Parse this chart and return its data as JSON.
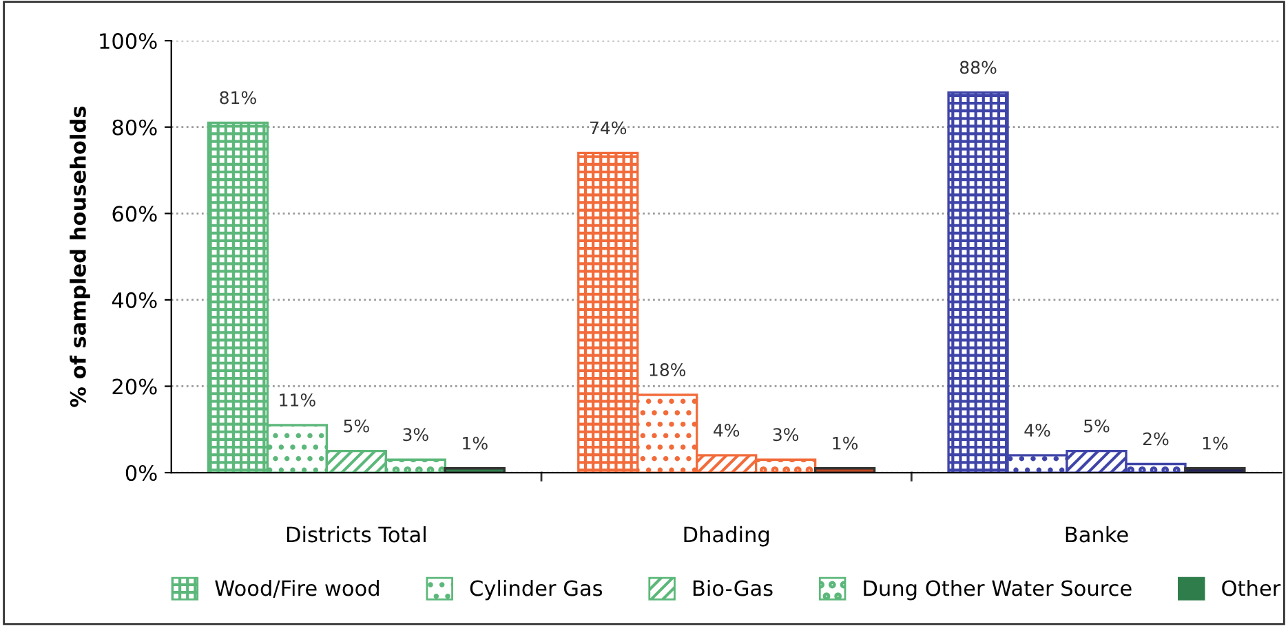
{
  "chart_data": {
    "type": "bar",
    "categories": [
      "Districts Total",
      "Dhading",
      "Banke"
    ],
    "ylabel": "% of sampled households",
    "series": [
      {
        "name": "Wood/Fire wood",
        "colors": [
          "#5cb87a",
          "#f26b3a",
          "#3f45a8"
        ],
        "values": [
          81,
          74,
          88
        ]
      },
      {
        "name": "Cylinder Gas",
        "colors": [
          "#5cb87a",
          "#f26b3a",
          "#3f45a8"
        ],
        "values": [
          11,
          18,
          4
        ]
      },
      {
        "name": "Bio-Gas",
        "colors": [
          "#5cb87a",
          "#f26b3a",
          "#3f45a8"
        ],
        "values": [
          5,
          4,
          5
        ]
      },
      {
        "name": "Dung Other Water Source",
        "colors": [
          "#5cb87a",
          "#f26b3a",
          "#3f45a8"
        ],
        "values": [
          3,
          3,
          2
        ]
      },
      {
        "name": "Other",
        "colors": [
          "#2e7d4a",
          "#c0451d",
          "#22235a"
        ],
        "values": [
          1,
          1,
          1
        ]
      }
    ],
    "ylim": [
      0,
      100
    ],
    "yticks": [
      {
        "value": 0,
        "label": "0%"
      },
      {
        "value": 20,
        "label": "20%"
      },
      {
        "value": 40,
        "label": "40%"
      },
      {
        "value": 60,
        "label": "60%"
      },
      {
        "value": 80,
        "label": "80%"
      },
      {
        "value": 100,
        "label": "100%"
      }
    ],
    "value_labels": [
      [
        "81%",
        "74%",
        "88%"
      ],
      [
        "11%",
        "18%",
        "4%"
      ],
      [
        "5%",
        "4%",
        "5%"
      ],
      [
        "3%",
        "3%",
        "2%"
      ],
      [
        "1%",
        "1%",
        "1%"
      ]
    ],
    "grid": "y",
    "legend": "bottom"
  }
}
